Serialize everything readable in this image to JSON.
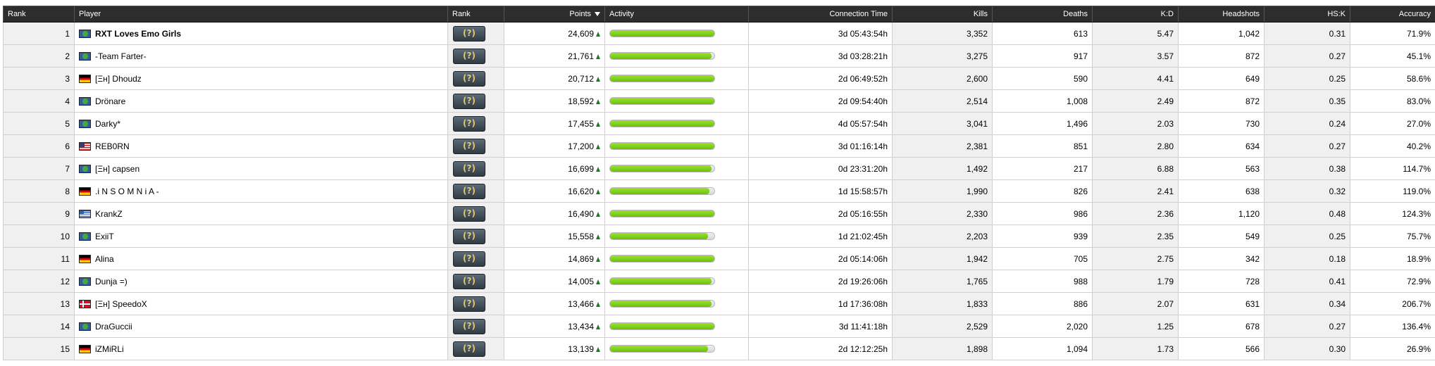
{
  "headers": {
    "rank": "Rank",
    "player": "Player",
    "rank_badge": "Rank",
    "points": "Points",
    "activity": "Activity",
    "connection_time": "Connection Time",
    "kills": "Kills",
    "deaths": "Deaths",
    "kd": "K:D",
    "headshots": "Headshots",
    "hsk": "HS:K",
    "accuracy": "Accuracy"
  },
  "icons": {
    "sort": "sort-descending-icon",
    "trend": "trend-up-arrow-icon",
    "rank_badge": "rank-badge-unknown-icon"
  },
  "colors": {
    "header_bg": "#2d2d2d",
    "activity_fill": "#7ccc1a",
    "trend_up": "#1f7a1f"
  },
  "rows": [
    {
      "rank": "1",
      "flag": "world",
      "name": "RXT Loves Emo Girls",
      "bold": true,
      "points": "24,609",
      "activity": 1.0,
      "time": "3d 05:43:54h",
      "kills": "3,352",
      "deaths": "613",
      "kd": "5.47",
      "hs": "1,042",
      "hsk": "0.31",
      "acc": "71.9%"
    },
    {
      "rank": "2",
      "flag": "world",
      "name": "-Team Farter-",
      "bold": false,
      "points": "21,761",
      "activity": 0.97,
      "time": "3d 03:28:21h",
      "kills": "3,275",
      "deaths": "917",
      "kd": "3.57",
      "hs": "872",
      "hsk": "0.27",
      "acc": "45.1%"
    },
    {
      "rank": "3",
      "flag": "de",
      "name": "[Ξн] Dhoudz",
      "bold": false,
      "points": "20,712",
      "activity": 1.0,
      "time": "2d 06:49:52h",
      "kills": "2,600",
      "deaths": "590",
      "kd": "4.41",
      "hs": "649",
      "hsk": "0.25",
      "acc": "58.6%"
    },
    {
      "rank": "4",
      "flag": "world",
      "name": "Drönare",
      "bold": false,
      "points": "18,592",
      "activity": 1.0,
      "time": "2d 09:54:40h",
      "kills": "2,514",
      "deaths": "1,008",
      "kd": "2.49",
      "hs": "872",
      "hsk": "0.35",
      "acc": "83.0%"
    },
    {
      "rank": "5",
      "flag": "world",
      "name": "Darky*",
      "bold": false,
      "points": "17,455",
      "activity": 1.0,
      "time": "4d 05:57:54h",
      "kills": "3,041",
      "deaths": "1,496",
      "kd": "2.03",
      "hs": "730",
      "hsk": "0.24",
      "acc": "27.0%"
    },
    {
      "rank": "6",
      "flag": "us",
      "name": "REB0RN",
      "bold": false,
      "points": "17,200",
      "activity": 1.0,
      "time": "3d 01:16:14h",
      "kills": "2,381",
      "deaths": "851",
      "kd": "2.80",
      "hs": "634",
      "hsk": "0.27",
      "acc": "40.2%"
    },
    {
      "rank": "7",
      "flag": "world",
      "name": "[Ξн] capsen",
      "bold": false,
      "points": "16,699",
      "activity": 0.97,
      "time": "0d 23:31:20h",
      "kills": "1,492",
      "deaths": "217",
      "kd": "6.88",
      "hs": "563",
      "hsk": "0.38",
      "acc": "114.7%"
    },
    {
      "rank": "8",
      "flag": "de",
      "name": ".i N S O M N i A -",
      "bold": false,
      "points": "16,620",
      "activity": 0.95,
      "time": "1d 15:58:57h",
      "kills": "1,990",
      "deaths": "826",
      "kd": "2.41",
      "hs": "638",
      "hsk": "0.32",
      "acc": "119.0%"
    },
    {
      "rank": "9",
      "flag": "gr",
      "name": "KrankZ",
      "bold": false,
      "points": "16,490",
      "activity": 1.0,
      "time": "2d 05:16:55h",
      "kills": "2,330",
      "deaths": "986",
      "kd": "2.36",
      "hs": "1,120",
      "hsk": "0.48",
      "acc": "124.3%"
    },
    {
      "rank": "10",
      "flag": "world",
      "name": "ExiiT",
      "bold": false,
      "points": "15,558",
      "activity": 0.94,
      "time": "1d 21:02:45h",
      "kills": "2,203",
      "deaths": "939",
      "kd": "2.35",
      "hs": "549",
      "hsk": "0.25",
      "acc": "75.7%"
    },
    {
      "rank": "11",
      "flag": "de",
      "name": "Alina",
      "bold": false,
      "points": "14,869",
      "activity": 1.0,
      "time": "2d 05:14:06h",
      "kills": "1,942",
      "deaths": "705",
      "kd": "2.75",
      "hs": "342",
      "hsk": "0.18",
      "acc": "18.9%"
    },
    {
      "rank": "12",
      "flag": "world",
      "name": "Dunja =)",
      "bold": false,
      "points": "14,005",
      "activity": 0.97,
      "time": "2d 19:26:06h",
      "kills": "1,765",
      "deaths": "988",
      "kd": "1.79",
      "hs": "728",
      "hsk": "0.41",
      "acc": "72.9%"
    },
    {
      "rank": "13",
      "flag": "dk",
      "name": "[Ξн] SpeedoX",
      "bold": false,
      "points": "13,466",
      "activity": 0.97,
      "time": "1d 17:36:08h",
      "kills": "1,833",
      "deaths": "886",
      "kd": "2.07",
      "hs": "631",
      "hsk": "0.34",
      "acc": "206.7%"
    },
    {
      "rank": "14",
      "flag": "world",
      "name": "DraGuccii",
      "bold": false,
      "points": "13,434",
      "activity": 1.0,
      "time": "3d 11:41:18h",
      "kills": "2,529",
      "deaths": "2,020",
      "kd": "1.25",
      "hs": "678",
      "hsk": "0.27",
      "acc": "136.4%"
    },
    {
      "rank": "15",
      "flag": "de",
      "name": "iZMiRLi",
      "bold": false,
      "points": "13,139",
      "activity": 0.94,
      "time": "2d 12:12:25h",
      "kills": "1,898",
      "deaths": "1,094",
      "kd": "1.73",
      "hs": "566",
      "hsk": "0.30",
      "acc": "26.9%"
    }
  ]
}
